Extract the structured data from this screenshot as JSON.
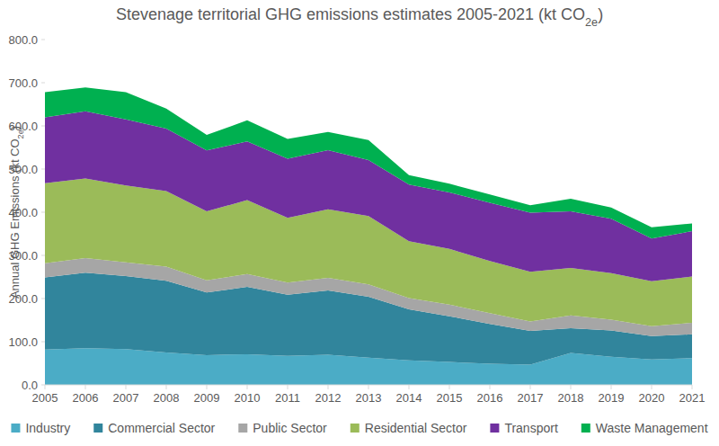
{
  "chart_data": {
    "type": "area",
    "stacked": true,
    "grid": false,
    "legend": "bottom",
    "title": "Stevenage territorial GHG emissions estimates 2005-2021 (kt CO2e)",
    "y_label": "Annual GHG Emissions (kt CO2e)",
    "categories": [
      "2005",
      "2006",
      "2007",
      "2008",
      "2009",
      "2010",
      "2011",
      "2012",
      "2013",
      "2014",
      "2015",
      "2016",
      "2017",
      "2018",
      "2019",
      "2020",
      "2021"
    ],
    "ylim": [
      0,
      800
    ],
    "yticks": [
      {
        "value": 0,
        "label": "0.0"
      },
      {
        "value": 100,
        "label": "100.0"
      },
      {
        "value": 200,
        "label": "200.0"
      },
      {
        "value": 300,
        "label": "300.0"
      },
      {
        "value": 400,
        "label": "400.0"
      },
      {
        "value": 500,
        "label": "500.0"
      },
      {
        "value": 600,
        "label": "600.0"
      },
      {
        "value": 700,
        "label": "700.0"
      },
      {
        "value": 800,
        "label": "800.0"
      }
    ],
    "series": [
      {
        "name": "Industry",
        "color": "#4bacc6",
        "values": [
          82,
          85,
          83,
          75,
          69,
          71,
          67,
          70,
          63,
          57,
          53,
          49,
          47,
          74,
          65,
          59,
          62
        ]
      },
      {
        "name": "Commercial Sector",
        "color": "#31859c",
        "values": [
          167,
          175,
          169,
          166,
          145,
          156,
          142,
          149,
          141,
          118,
          106,
          92,
          78,
          57,
          61,
          54,
          55
        ]
      },
      {
        "name": "Public Sector",
        "color": "#a6a6a6",
        "values": [
          33,
          34,
          32,
          33,
          28,
          30,
          28,
          29,
          29,
          26,
          27,
          25,
          22,
          30,
          25,
          23,
          27
        ]
      },
      {
        "name": "Residential Sector",
        "color": "#9bbb59",
        "values": [
          185,
          184,
          178,
          175,
          160,
          171,
          150,
          159,
          158,
          132,
          129,
          121,
          115,
          110,
          108,
          104,
          107
        ]
      },
      {
        "name": "Transport",
        "color": "#7030a0",
        "values": [
          153,
          156,
          153,
          145,
          141,
          136,
          137,
          137,
          130,
          131,
          131,
          135,
          137,
          131,
          126,
          99,
          105
        ]
      },
      {
        "name": "Waste Management",
        "color": "#00b050",
        "values": [
          58,
          55,
          63,
          46,
          36,
          49,
          46,
          42,
          46,
          22,
          20,
          19,
          17,
          29,
          26,
          26,
          18
        ]
      }
    ]
  }
}
